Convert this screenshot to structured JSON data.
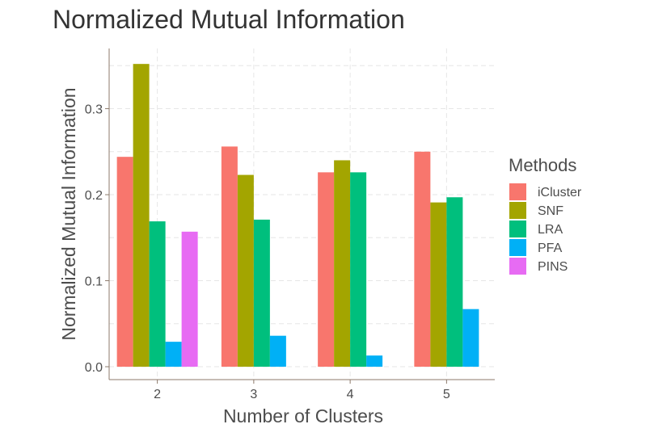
{
  "chart_data": {
    "type": "bar",
    "title": "Normalized Mutual Information",
    "xlabel": "Number of Clusters",
    "ylabel": "Normalized Mutual Information",
    "categories": [
      "2",
      "3",
      "4",
      "5"
    ],
    "ylim": [
      -0.015,
      0.37
    ],
    "yticks": [
      0.0,
      0.1,
      0.2,
      0.3
    ],
    "ytick_labels": [
      "0.0",
      "0.1",
      "0.2",
      "0.3"
    ],
    "grid": true,
    "legend": {
      "title": "Methods",
      "position": "right"
    },
    "series": [
      {
        "name": "iCluster",
        "color": "#F8766D",
        "values": [
          0.244,
          0.256,
          0.226,
          0.25
        ]
      },
      {
        "name": "SNF",
        "color": "#A3A500",
        "values": [
          0.352,
          0.223,
          0.24,
          0.191
        ]
      },
      {
        "name": "LRA",
        "color": "#00BF7D",
        "values": [
          0.169,
          0.171,
          0.226,
          0.197
        ]
      },
      {
        "name": "PFA",
        "color": "#00B0F6",
        "values": [
          0.029,
          0.036,
          0.013,
          0.067
        ]
      },
      {
        "name": "PINS",
        "color": "#E76BF3",
        "values": [
          0.157,
          null,
          null,
          null
        ]
      }
    ]
  }
}
